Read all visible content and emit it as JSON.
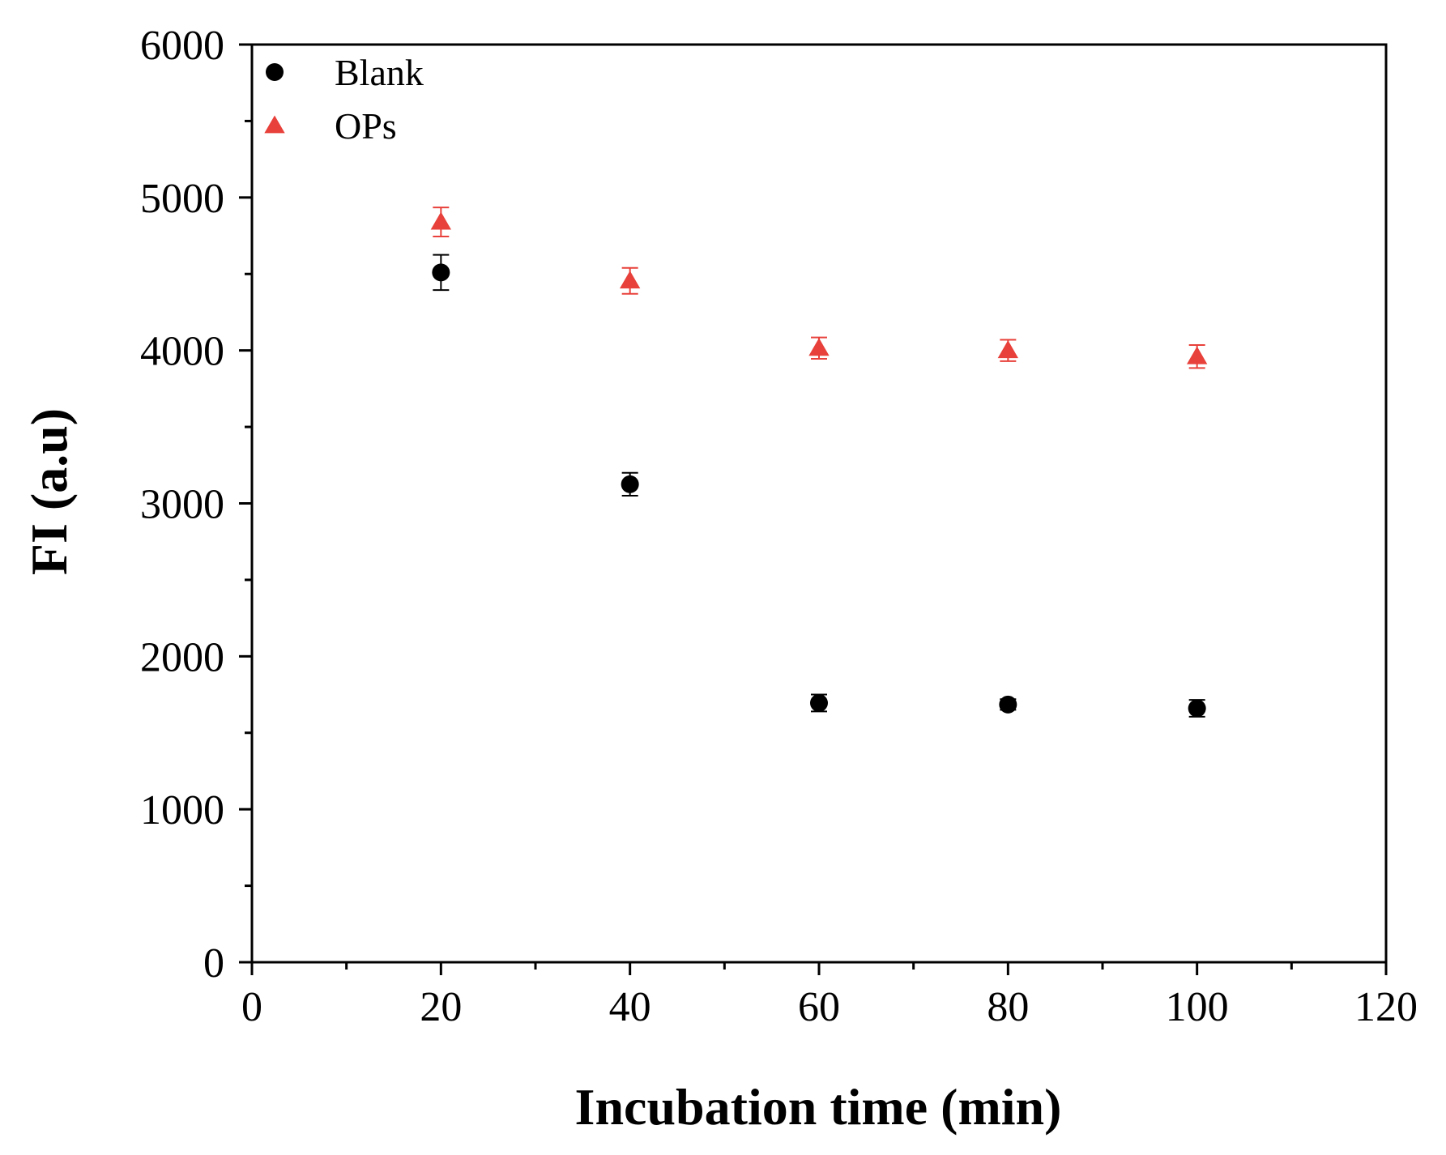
{
  "chart_data": {
    "type": "scatter",
    "title": "",
    "xlabel": "Incubation time (min)",
    "ylabel": "FI (a.u)",
    "xlim": [
      0,
      120
    ],
    "ylim": [
      0,
      6000
    ],
    "x_ticks": [
      0,
      20,
      40,
      60,
      80,
      100,
      120
    ],
    "y_ticks": [
      0,
      1000,
      2000,
      3000,
      4000,
      5000,
      6000
    ],
    "x_tick_labels": [
      "0",
      "20",
      "40",
      "60",
      "80",
      "100",
      "120"
    ],
    "y_tick_labels": [
      "0",
      "1000",
      "2000",
      "3000",
      "4000",
      "5000",
      "6000"
    ],
    "grid": false,
    "legend": "top-left",
    "series": [
      {
        "name": "Blank",
        "marker": "circle",
        "color": "#000000",
        "x": [
          20,
          40,
          60,
          80,
          100
        ],
        "y": [
          4510,
          3125,
          1695,
          1685,
          1660
        ],
        "error": [
          115,
          75,
          55,
          35,
          55
        ]
      },
      {
        "name": "OPs",
        "marker": "triangle",
        "color": "#e8403a",
        "x": [
          20,
          40,
          60,
          80,
          100
        ],
        "y": [
          4840,
          4455,
          4015,
          4000,
          3960
        ],
        "error": [
          95,
          85,
          70,
          70,
          75
        ]
      }
    ]
  }
}
